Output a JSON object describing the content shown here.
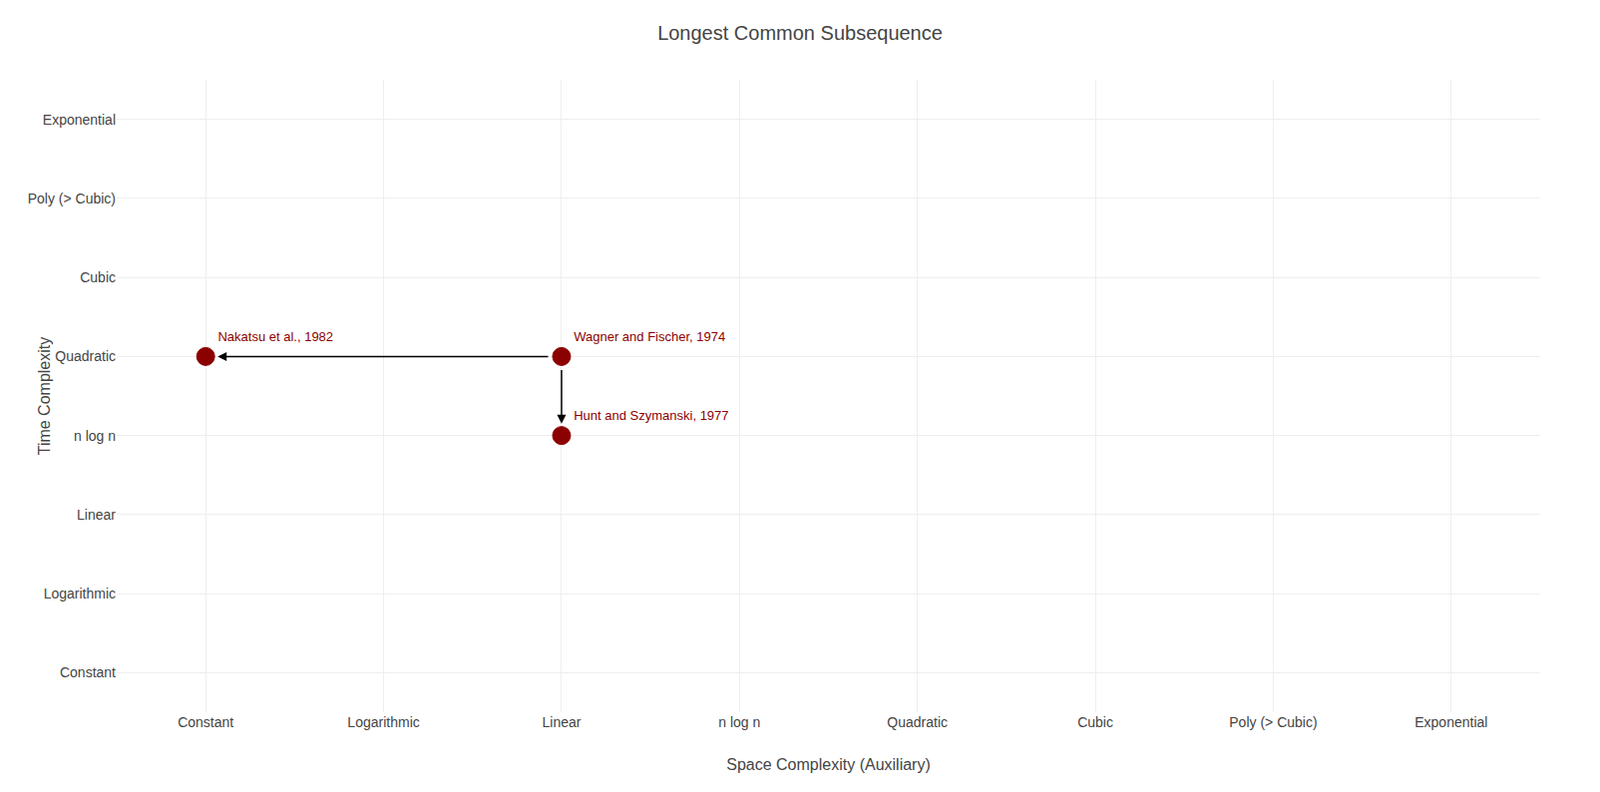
{
  "chart_data": {
    "type": "scatter",
    "title": "Longest Common Subsequence",
    "xlabel": "Space Complexity (Auxiliary)",
    "ylabel": "Time Complexity",
    "x_categories": [
      "Constant",
      "Logarithmic",
      "Linear",
      "n log n",
      "Quadratic",
      "Cubic",
      "Poly (> Cubic)",
      "Exponential"
    ],
    "y_categories": [
      "Constant",
      "Logarithmic",
      "Linear",
      "n log n",
      "Quadratic",
      "Cubic",
      "Poly (> Cubic)",
      "Exponential"
    ],
    "points": [
      {
        "name": "Nakatsu et al., 1982",
        "x": "Constant",
        "y": "Quadratic"
      },
      {
        "name": "Wagner and Fischer, 1974",
        "x": "Linear",
        "y": "Quadratic"
      },
      {
        "name": "Hunt and Szymanski, 1977",
        "x": "Linear",
        "y": "n log n"
      }
    ],
    "arrows": [
      {
        "from_x": "Linear",
        "from_y": "Quadratic",
        "to_x": "Constant",
        "to_y": "Quadratic"
      },
      {
        "from_x": "Linear",
        "from_y": "Quadratic",
        "to_x": "Linear",
        "to_y": "n log n"
      }
    ],
    "color": "#8b0000",
    "grid": true
  }
}
